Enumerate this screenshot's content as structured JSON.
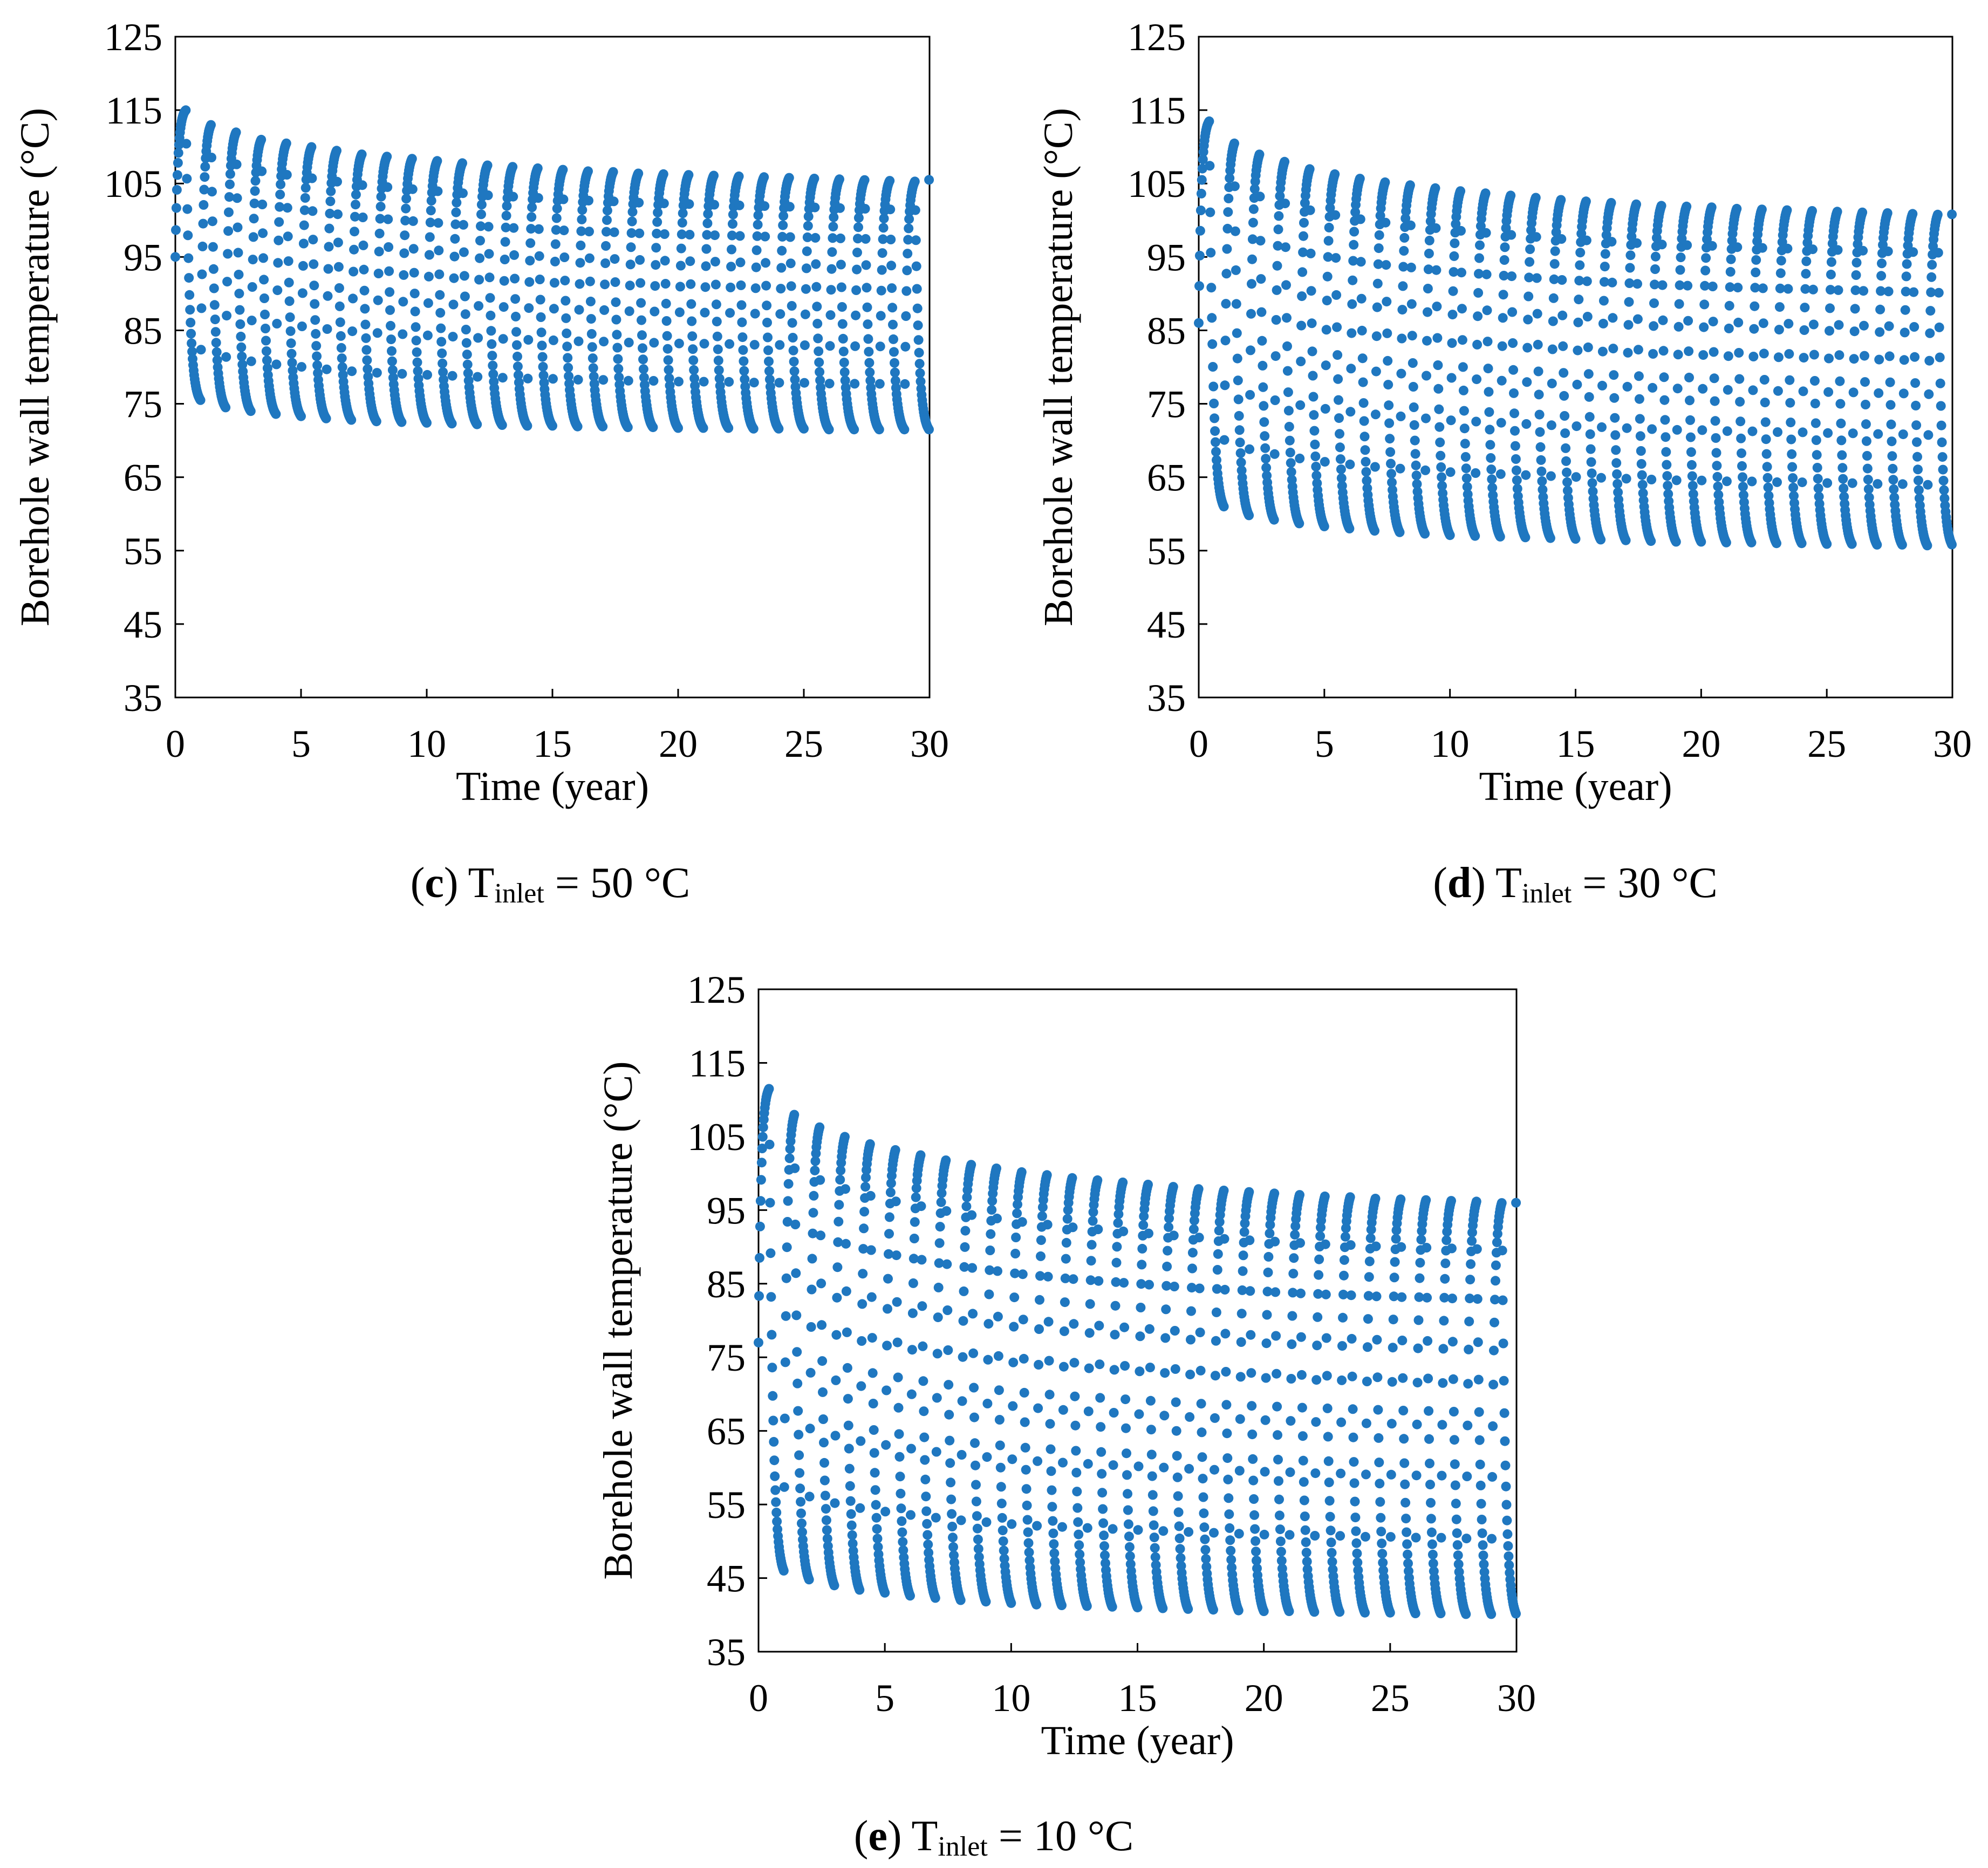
{
  "chart_data": [
    {
      "type": "scatter",
      "panel": "c",
      "caption": {
        "prefix": "(",
        "letter": "c",
        "suffix": ")",
        "var": "T",
        "sub": "inlet",
        "rest": " = 50 °C"
      },
      "xlabel": "Time (year)",
      "ylabel": "Borehole wall temperature (°C)",
      "xlim": [
        0,
        30
      ],
      "ylim": [
        35,
        125
      ],
      "xticks": [
        "0",
        "5",
        "10",
        "15",
        "20",
        "25",
        "30"
      ],
      "yticks": [
        "35",
        "45",
        "55",
        "65",
        "75",
        "85",
        "95",
        "105",
        "115",
        "125"
      ],
      "series": [
        {
          "name": "Borehole wall temperature",
          "color": "#1f77c0",
          "cycles": 30,
          "start_value": 95,
          "peak_values": [
            115,
            113,
            112,
            111,
            110.5,
            110,
            109.5,
            109,
            108.7,
            108.4,
            108.1,
            107.8,
            107.5,
            107.3,
            107.1,
            106.9,
            106.7,
            106.6,
            106.4,
            106.3,
            106.2,
            106.1,
            106,
            105.9,
            105.8,
            105.7,
            105.6,
            105.5,
            105.4,
            105.3
          ],
          "min_values": [
            75.5,
            74.5,
            74,
            73.6,
            73.3,
            73,
            72.8,
            72.6,
            72.5,
            72.4,
            72.3,
            72.2,
            72.1,
            72,
            72,
            71.9,
            71.9,
            71.8,
            71.8,
            71.7,
            71.7,
            71.7,
            71.6,
            71.6,
            71.6,
            71.5,
            71.5,
            71.5,
            71.5,
            71.4
          ],
          "end_value": 105.5
        }
      ]
    },
    {
      "type": "scatter",
      "panel": "d",
      "caption": {
        "prefix": "(",
        "letter": "d",
        "suffix": ")",
        "var": "T",
        "sub": "inlet",
        "rest": " = 30 °C"
      },
      "xlabel": "Time (year)",
      "ylabel": "Borehole wall temperature (°C)",
      "xlim": [
        0,
        30
      ],
      "ylim": [
        35,
        125
      ],
      "xticks": [
        "0",
        "5",
        "10",
        "15",
        "20",
        "25",
        "30"
      ],
      "yticks": [
        "35",
        "45",
        "55",
        "65",
        "75",
        "85",
        "95",
        "105",
        "115",
        "125"
      ],
      "series": [
        {
          "name": "Borehole wall temperature",
          "color": "#1f77c0",
          "cycles": 30,
          "start_value": 86,
          "peak_values": [
            113.5,
            110.5,
            109,
            108,
            107,
            106.3,
            105.7,
            105.2,
            104.8,
            104.4,
            104,
            103.7,
            103.4,
            103.1,
            102.8,
            102.6,
            102.4,
            102.2,
            102,
            101.9,
            101.8,
            101.6,
            101.5,
            101.4,
            101.3,
            101.2,
            101.1,
            101,
            100.9,
            100.8
          ],
          "min_values": [
            61,
            59.8,
            59.2,
            58.7,
            58.3,
            58,
            57.7,
            57.5,
            57.3,
            57.1,
            57,
            56.9,
            56.8,
            56.7,
            56.6,
            56.5,
            56.4,
            56.3,
            56.2,
            56.2,
            56.1,
            56.1,
            56,
            56,
            55.9,
            55.9,
            55.8,
            55.8,
            55.7,
            55.7
          ],
          "end_value": 100.8
        }
      ]
    },
    {
      "type": "scatter",
      "panel": "e",
      "caption": {
        "prefix": "(",
        "letter": "e",
        "suffix": ")",
        "var": "T",
        "sub": "inlet",
        "rest": " = 10 °C"
      },
      "xlabel": "Time (year)",
      "ylabel": "Borehole wall temperature (°C)",
      "xlim": [
        0,
        30
      ],
      "ylim": [
        35,
        125
      ],
      "xticks": [
        "0",
        "5",
        "10",
        "15",
        "20",
        "25",
        "30"
      ],
      "yticks": [
        "35",
        "45",
        "55",
        "65",
        "75",
        "85",
        "95",
        "105",
        "115",
        "125"
      ],
      "series": [
        {
          "name": "Borehole wall temperature",
          "color": "#1f77c0",
          "cycles": 30,
          "start_value": 77,
          "peak_values": [
            111.5,
            108,
            106.3,
            105,
            104,
            103.2,
            102.5,
            101.8,
            101.2,
            100.7,
            100.2,
            99.8,
            99.4,
            99.1,
            98.8,
            98.5,
            98.2,
            97.9,
            97.7,
            97.5,
            97.3,
            97.1,
            96.9,
            96.8,
            96.6,
            96.5,
            96.4,
            96.3,
            96.2,
            96
          ],
          "min_values": [
            46,
            44.8,
            44,
            43.4,
            43,
            42.6,
            42.3,
            42,
            41.8,
            41.6,
            41.4,
            41.3,
            41.2,
            41.1,
            41,
            40.9,
            40.8,
            40.7,
            40.6,
            40.5,
            40.5,
            40.4,
            40.4,
            40.3,
            40.3,
            40.2,
            40.2,
            40.1,
            40.1,
            40
          ],
          "end_value": 96
        }
      ]
    }
  ]
}
